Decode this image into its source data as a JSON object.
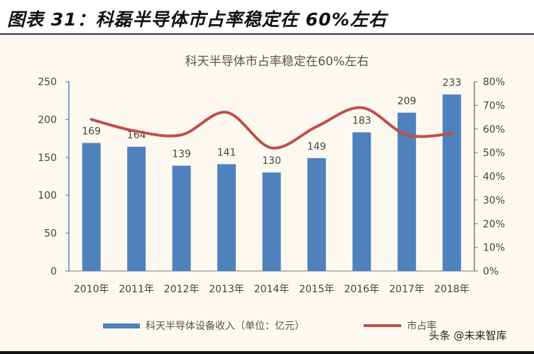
{
  "header": {
    "title": "图表 31：科磊半导体市占率稳定在 60%左右"
  },
  "watermark": "头条 @未来智库",
  "chart_data": {
    "type": "bar+line",
    "title": "科天半导体市占率稳定在60%左右",
    "categories": [
      "2010年",
      "2011年",
      "2012年",
      "2013年",
      "2014年",
      "2015年",
      "2016年",
      "2017年",
      "2018年"
    ],
    "series": [
      {
        "name": "科天半导体设备收入（单位：亿元）",
        "type": "bar",
        "axis": "left",
        "color": "#4f81bd",
        "values": [
          169,
          164,
          139,
          141,
          130,
          149,
          183,
          209,
          233
        ],
        "data_labels": true
      },
      {
        "name": "市占率",
        "type": "line",
        "axis": "right",
        "color": "#c0504d",
        "smooth": true,
        "values": [
          0.64,
          0.59,
          0.575,
          0.67,
          0.52,
          0.61,
          0.69,
          0.575,
          0.58
        ]
      }
    ],
    "y_left": {
      "range": [
        0,
        250
      ],
      "ticks": [
        "0",
        "50",
        "100",
        "150",
        "200",
        "250"
      ]
    },
    "y_right": {
      "range": [
        0,
        0.8
      ],
      "ticks": [
        "0%",
        "10%",
        "20%",
        "30%",
        "40%",
        "50%",
        "60%",
        "70%",
        "80%"
      ]
    },
    "grid": false,
    "legend": "bottom"
  }
}
